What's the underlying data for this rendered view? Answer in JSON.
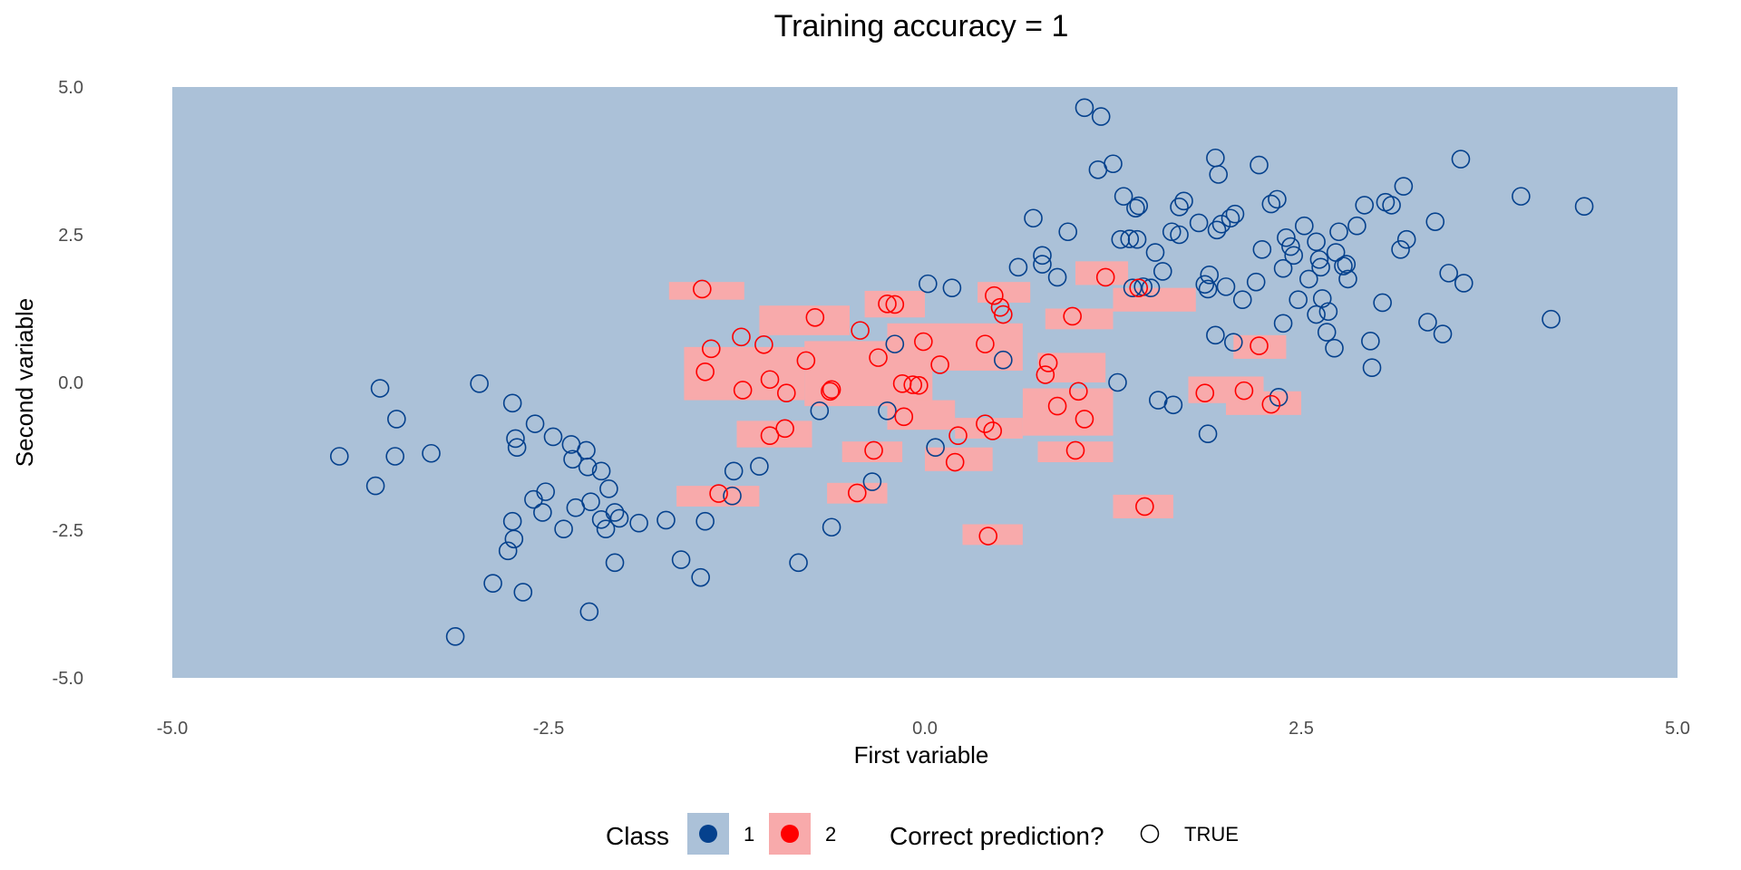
{
  "colors": {
    "region_class1": "#abc1d8",
    "region_class2": "#f8aaab",
    "point_class1": "#05418d",
    "point_class2": "#ff0000",
    "background": "#ffffff"
  },
  "chart_data": {
    "type": "scatter",
    "title": "Training accuracy = 1",
    "xlabel": "First variable",
    "ylabel": "Second variable",
    "xlim": [
      -5,
      5
    ],
    "ylim": [
      -5,
      5
    ],
    "x_ticks": [
      -5,
      -2.5,
      0,
      2.5,
      5
    ],
    "y_ticks": [
      -5,
      -2.5,
      0,
      2.5,
      5
    ],
    "x_tick_labels": [
      "-5.0",
      "-2.5",
      "0.0",
      "2.5",
      "5.0"
    ],
    "y_tick_labels": [
      "-5.0",
      "-2.5",
      "0.0",
      "2.5",
      "5.0"
    ],
    "grid": false,
    "decision_region": {
      "default_class": "1",
      "class2_rects": [
        [
          -1.7,
          -1.2,
          1.4,
          1.7
        ],
        [
          -1.6,
          -0.8,
          -0.3,
          0.6
        ],
        [
          -1.1,
          -0.5,
          0.8,
          1.3
        ],
        [
          -0.8,
          0.05,
          -0.4,
          0.7
        ],
        [
          -0.4,
          0.0,
          1.1,
          1.55
        ],
        [
          -0.25,
          0.65,
          0.2,
          1.0
        ],
        [
          0.35,
          0.7,
          1.35,
          1.7
        ],
        [
          -0.25,
          0.2,
          -0.8,
          -0.3
        ],
        [
          -1.25,
          -0.75,
          -1.1,
          -0.65
        ],
        [
          -0.55,
          -0.15,
          -1.35,
          -1.0
        ],
        [
          0.0,
          0.45,
          -1.5,
          -1.1
        ],
        [
          0.2,
          0.65,
          -0.95,
          -0.6
        ],
        [
          -1.65,
          -1.1,
          -2.1,
          -1.75
        ],
        [
          -0.65,
          -0.25,
          -2.05,
          -1.7
        ],
        [
          0.25,
          0.65,
          -2.75,
          -2.4
        ],
        [
          0.75,
          1.2,
          0.0,
          0.5
        ],
        [
          0.65,
          1.25,
          -0.9,
          -0.1
        ],
        [
          0.75,
          1.25,
          -1.35,
          -1.0
        ],
        [
          1.0,
          1.35,
          1.65,
          2.05
        ],
        [
          0.8,
          1.25,
          0.9,
          1.25
        ],
        [
          1.25,
          1.8,
          1.2,
          1.6
        ],
        [
          1.75,
          2.25,
          -0.35,
          0.1
        ],
        [
          2.0,
          2.5,
          -0.55,
          -0.15
        ],
        [
          2.05,
          2.4,
          0.4,
          0.8
        ],
        [
          1.25,
          1.65,
          -2.3,
          -1.9
        ]
      ]
    },
    "series": [
      {
        "name": "1",
        "correct": true,
        "points": [
          [
            1.06,
            4.65
          ],
          [
            1.17,
            4.5
          ],
          [
            1.25,
            3.7
          ],
          [
            1.15,
            3.6
          ],
          [
            1.32,
            3.15
          ],
          [
            1.4,
            2.95
          ],
          [
            1.42,
            2.99
          ],
          [
            1.3,
            2.42
          ],
          [
            1.36,
            2.43
          ],
          [
            1.41,
            2.42
          ],
          [
            1.38,
            1.6
          ],
          [
            1.45,
            1.62
          ],
          [
            1.5,
            1.6
          ],
          [
            1.53,
            2.2
          ],
          [
            1.58,
            1.88
          ],
          [
            1.64,
            2.55
          ],
          [
            1.69,
            2.97
          ],
          [
            1.72,
            3.07
          ],
          [
            1.69,
            2.5
          ],
          [
            1.82,
            2.7
          ],
          [
            1.93,
            3.8
          ],
          [
            1.95,
            3.52
          ],
          [
            1.97,
            2.68
          ],
          [
            1.94,
            2.58
          ],
          [
            1.86,
            1.66
          ],
          [
            1.88,
            1.58
          ],
          [
            1.89,
            1.82
          ],
          [
            2.0,
            1.62
          ],
          [
            2.03,
            2.78
          ],
          [
            2.06,
            2.85
          ],
          [
            2.11,
            1.4
          ],
          [
            2.2,
            1.7
          ],
          [
            2.24,
            2.25
          ],
          [
            2.22,
            3.68
          ],
          [
            2.3,
            3.02
          ],
          [
            2.34,
            3.1
          ],
          [
            2.38,
            1.93
          ],
          [
            2.4,
            2.45
          ],
          [
            2.43,
            2.3
          ],
          [
            2.45,
            2.15
          ],
          [
            2.48,
            1.4
          ],
          [
            2.55,
            1.75
          ],
          [
            2.52,
            2.65
          ],
          [
            2.6,
            2.38
          ],
          [
            2.62,
            2.08
          ],
          [
            2.63,
            1.95
          ],
          [
            2.6,
            1.15
          ],
          [
            2.64,
            1.42
          ],
          [
            2.68,
            1.2
          ],
          [
            2.67,
            0.85
          ],
          [
            2.73,
            2.2
          ],
          [
            2.75,
            2.55
          ],
          [
            2.81,
            1.75
          ],
          [
            2.8,
            2.0
          ],
          [
            2.78,
            1.97
          ],
          [
            2.87,
            2.65
          ],
          [
            2.92,
            3.0
          ],
          [
            2.96,
            0.7
          ],
          [
            2.97,
            0.25
          ],
          [
            3.04,
            1.35
          ],
          [
            3.06,
            3.05
          ],
          [
            3.1,
            3.0
          ],
          [
            3.16,
            2.25
          ],
          [
            3.18,
            3.32
          ],
          [
            3.2,
            2.42
          ],
          [
            3.34,
            1.02
          ],
          [
            3.39,
            2.72
          ],
          [
            3.44,
            0.82
          ],
          [
            3.48,
            1.85
          ],
          [
            3.58,
            1.68
          ],
          [
            3.56,
            3.78
          ],
          [
            3.96,
            3.15
          ],
          [
            4.16,
            1.07
          ],
          [
            4.38,
            2.98
          ],
          [
            2.38,
            1.0
          ],
          [
            2.72,
            0.58
          ],
          [
            2.05,
            0.68
          ],
          [
            1.93,
            0.8
          ],
          [
            1.88,
            -0.87
          ],
          [
            2.35,
            -0.25
          ],
          [
            1.28,
            0.0
          ],
          [
            1.55,
            -0.3
          ],
          [
            1.65,
            -0.38
          ],
          [
            0.95,
            2.55
          ],
          [
            0.88,
            1.78
          ],
          [
            0.78,
            2.15
          ],
          [
            0.78,
            2.0
          ],
          [
            0.72,
            2.78
          ],
          [
            0.62,
            1.95
          ],
          [
            0.52,
            0.38
          ],
          [
            0.18,
            1.6
          ],
          [
            0.02,
            1.67
          ],
          [
            -0.2,
            0.65
          ],
          [
            -0.25,
            -0.48
          ],
          [
            -0.35,
            -1.68
          ],
          [
            0.07,
            -1.1
          ],
          [
            -0.7,
            -0.48
          ],
          [
            -0.62,
            -2.45
          ],
          [
            -0.84,
            -3.05
          ],
          [
            -1.1,
            -1.42
          ],
          [
            -1.27,
            -1.5
          ],
          [
            -1.28,
            -1.92
          ],
          [
            -1.46,
            -2.35
          ],
          [
            -1.49,
            -3.3
          ],
          [
            -1.62,
            -3.0
          ],
          [
            -1.72,
            -2.33
          ],
          [
            -1.9,
            -2.38
          ],
          [
            -2.03,
            -2.3
          ],
          [
            -2.06,
            -3.05
          ],
          [
            -2.06,
            -2.2
          ],
          [
            -2.12,
            -2.48
          ],
          [
            -2.15,
            -2.32
          ],
          [
            -2.1,
            -1.8
          ],
          [
            -2.15,
            -1.5
          ],
          [
            -2.24,
            -1.43
          ],
          [
            -2.22,
            -2.02
          ],
          [
            -2.23,
            -3.88
          ],
          [
            -2.25,
            -1.15
          ],
          [
            -2.35,
            -1.05
          ],
          [
            -2.32,
            -2.12
          ],
          [
            -2.34,
            -1.3
          ],
          [
            -2.4,
            -2.48
          ],
          [
            -2.47,
            -0.92
          ],
          [
            -2.52,
            -1.85
          ],
          [
            -2.54,
            -2.2
          ],
          [
            -2.59,
            -0.7
          ],
          [
            -2.6,
            -1.98
          ],
          [
            -2.67,
            -3.55
          ],
          [
            -2.71,
            -1.1
          ],
          [
            -2.72,
            -0.95
          ],
          [
            -2.73,
            -2.65
          ],
          [
            -2.74,
            -0.35
          ],
          [
            -2.74,
            -2.35
          ],
          [
            -2.77,
            -2.85
          ],
          [
            -2.87,
            -3.4
          ],
          [
            -2.96,
            -0.02
          ],
          [
            -3.12,
            -4.3
          ],
          [
            -3.28,
            -1.2
          ],
          [
            -3.51,
            -0.62
          ],
          [
            -3.52,
            -1.25
          ],
          [
            -3.62,
            -0.1
          ],
          [
            -3.65,
            -1.75
          ],
          [
            -3.89,
            -1.25
          ]
        ]
      },
      {
        "name": "2",
        "correct": true,
        "points": [
          [
            -1.48,
            1.58
          ],
          [
            -1.42,
            0.57
          ],
          [
            -1.46,
            0.18
          ],
          [
            -1.22,
            0.77
          ],
          [
            -1.21,
            -0.13
          ],
          [
            -1.07,
            0.64
          ],
          [
            -1.03,
            0.05
          ],
          [
            -1.03,
            -0.9
          ],
          [
            -0.93,
            -0.78
          ],
          [
            -0.92,
            -0.18
          ],
          [
            -0.79,
            0.37
          ],
          [
            -0.73,
            1.1
          ],
          [
            -0.63,
            -0.15
          ],
          [
            -0.62,
            -0.12
          ],
          [
            -0.43,
            0.88
          ],
          [
            -0.31,
            0.42
          ],
          [
            -0.34,
            -1.15
          ],
          [
            -0.45,
            -1.87
          ],
          [
            -0.25,
            1.33
          ],
          [
            -0.2,
            1.32
          ],
          [
            -0.15,
            -0.02
          ],
          [
            -0.14,
            -0.58
          ],
          [
            -0.08,
            -0.04
          ],
          [
            -0.04,
            -0.05
          ],
          [
            -0.01,
            0.69
          ],
          [
            0.1,
            0.3
          ],
          [
            0.22,
            -0.9
          ],
          [
            0.2,
            -1.35
          ],
          [
            0.4,
            -0.7
          ],
          [
            0.4,
            0.65
          ],
          [
            0.45,
            -0.82
          ],
          [
            0.46,
            1.47
          ],
          [
            0.5,
            1.27
          ],
          [
            0.52,
            1.15
          ],
          [
            0.42,
            -2.6
          ],
          [
            0.8,
            0.13
          ],
          [
            0.82,
            0.33
          ],
          [
            0.88,
            -0.4
          ],
          [
            0.98,
            1.12
          ],
          [
            1.0,
            -1.15
          ],
          [
            1.02,
            -0.15
          ],
          [
            1.06,
            -0.62
          ],
          [
            1.2,
            1.78
          ],
          [
            1.42,
            1.6
          ],
          [
            1.46,
            -2.1
          ],
          [
            1.86,
            -0.18
          ],
          [
            2.12,
            -0.14
          ],
          [
            2.22,
            0.62
          ],
          [
            2.3,
            -0.37
          ],
          [
            -1.37,
            -1.88
          ]
        ]
      }
    ],
    "legend": {
      "placement": "bottom",
      "class_title": "Class",
      "class_entries": [
        "1",
        "2"
      ],
      "correct_title": "Correct prediction?",
      "correct_entries": [
        "TRUE"
      ]
    }
  }
}
